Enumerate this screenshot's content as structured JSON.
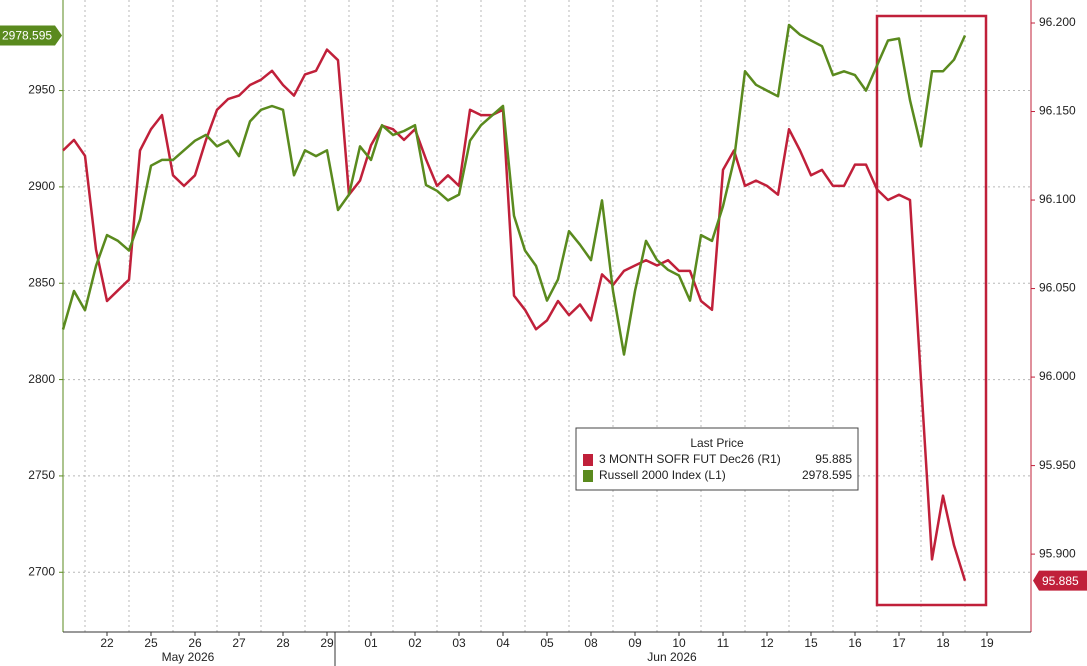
{
  "chart_data": {
    "type": "line",
    "legend_title": "Last Price",
    "x": [
      -0.5,
      -0.25,
      0,
      0.25,
      0.5,
      0.75,
      1,
      1.25,
      1.5,
      1.75,
      2,
      2.25,
      2.5,
      2.75,
      3,
      3.25,
      3.5,
      3.75,
      4,
      4.25,
      4.5,
      4.75,
      5,
      5.25,
      5.5,
      5.75,
      6,
      6.25,
      6.5,
      6.75,
      7,
      7.25,
      7.5,
      7.75,
      8,
      8.25,
      8.5,
      8.75,
      9,
      9.25,
      9.5,
      9.75,
      10,
      10.25,
      10.5,
      10.75,
      11,
      11.25,
      11.5,
      11.75,
      12,
      12.25,
      12.5,
      12.75,
      13,
      13.25,
      13.5,
      13.75,
      14,
      14.25,
      14.5,
      14.75,
      15,
      15.25,
      15.5,
      15.75,
      16,
      16.25,
      16.5,
      16.75,
      17,
      17.25,
      17.5,
      17.75,
      18,
      18.25,
      18.5,
      18.75,
      19,
      19.25,
      19.5,
      19.75,
      20
    ],
    "xlim": [
      -0.5,
      21.5
    ],
    "xticks": [
      {
        "value": 0.5,
        "label": "22"
      },
      {
        "value": 1.5,
        "label": "25"
      },
      {
        "value": 2.5,
        "label": "26"
      },
      {
        "value": 3.5,
        "label": "27"
      },
      {
        "value": 4.5,
        "label": "28"
      },
      {
        "value": 5.5,
        "label": "29"
      },
      {
        "value": 6.5,
        "label": "01"
      },
      {
        "value": 7.5,
        "label": "02"
      },
      {
        "value": 8.5,
        "label": "03"
      },
      {
        "value": 9.5,
        "label": "04"
      },
      {
        "value": 10.5,
        "label": "05"
      },
      {
        "value": 11.5,
        "label": "08"
      },
      {
        "value": 12.5,
        "label": "09"
      },
      {
        "value": 13.5,
        "label": "10"
      },
      {
        "value": 14.5,
        "label": "11"
      },
      {
        "value": 15.5,
        "label": "12"
      },
      {
        "value": 16.5,
        "label": "15"
      },
      {
        "value": 17.5,
        "label": "16"
      },
      {
        "value": 18.5,
        "label": "17"
      },
      {
        "value": 19.5,
        "label": "18"
      },
      {
        "value": 20.5,
        "label": "19"
      }
    ],
    "x_groups": [
      "May 2026",
      "Jun 2026"
    ],
    "ylim": [
      2669,
      2997
    ],
    "yticks": [
      2700,
      2750,
      2800,
      2850,
      2900,
      2950
    ],
    "y2lim": [
      95.856,
      96.213
    ],
    "y2ticks": [
      {
        "value": 95.9,
        "label": "95.900"
      },
      {
        "value": 95.95,
        "label": "95.950"
      },
      {
        "value": 96.0,
        "label": "96.000"
      },
      {
        "value": 96.05,
        "label": "96.050"
      },
      {
        "value": 96.1,
        "label": "96.100"
      },
      {
        "value": 96.15,
        "label": "96.150"
      },
      {
        "value": 96.2,
        "label": "96.200"
      }
    ],
    "grid": true,
    "series": [
      {
        "name": "3 MONTH SOFR FUT Dec26 (R1)",
        "color": "#c0203a",
        "axis": "y2",
        "values": [
          96.128,
          96.134,
          96.125,
          96.072,
          96.043,
          96.049,
          96.055,
          96.128,
          96.14,
          96.148,
          96.114,
          96.108,
          96.114,
          96.134,
          96.151,
          96.157,
          96.159,
          96.165,
          96.168,
          96.173,
          96.165,
          96.159,
          96.171,
          96.173,
          96.185,
          96.179,
          96.103,
          96.111,
          96.131,
          96.142,
          96.14,
          96.134,
          96.14,
          96.123,
          96.108,
          96.114,
          96.108,
          96.151,
          96.148,
          96.148,
          96.151,
          96.046,
          96.038,
          96.027,
          96.032,
          96.043,
          96.035,
          96.041,
          96.032,
          96.058,
          96.052,
          96.06,
          96.063,
          96.066,
          96.063,
          96.066,
          96.06,
          96.06,
          96.043,
          96.038,
          96.117,
          96.128,
          96.108,
          96.111,
          96.108,
          96.103,
          96.14,
          96.128,
          96.114,
          96.117,
          96.108,
          96.108,
          96.12,
          96.12,
          96.106,
          96.1,
          96.103,
          96.1,
          95.998,
          95.897,
          95.933,
          95.905,
          95.885
        ]
      },
      {
        "name": "Russell 2000 Index (L1)",
        "color": "#5a8a1e",
        "axis": "y",
        "values": [
          2826,
          2846,
          2836,
          2859,
          2875,
          2872,
          2867,
          2883,
          2911,
          2914,
          2914,
          2919,
          2924,
          2927,
          2921,
          2924,
          2916,
          2934,
          2940,
          2942,
          2940,
          2906,
          2919,
          2916,
          2919,
          2888,
          2896,
          2921,
          2914,
          2932,
          2927,
          2929,
          2932,
          2901,
          2898,
          2893,
          2896,
          2924,
          2932,
          2937,
          2942,
          2885,
          2867,
          2859,
          2841,
          2852,
          2877,
          2870,
          2862,
          2893,
          2846,
          2813,
          2846,
          2872,
          2862,
          2857,
          2854,
          2841,
          2875,
          2872,
          2890,
          2914,
          2960,
          2953,
          2950,
          2947,
          2984,
          2979,
          2976,
          2973,
          2958,
          2960,
          2958,
          2950,
          2963,
          2976,
          2977,
          2945,
          2921,
          2960,
          2960,
          2966,
          2978.595
        ]
      }
    ]
  }
}
